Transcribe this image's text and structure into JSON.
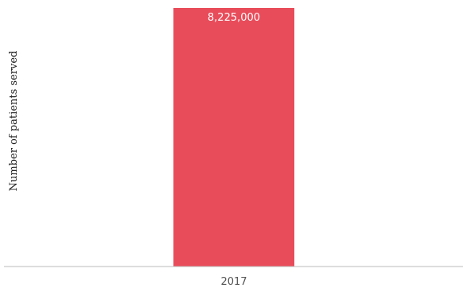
{
  "chart_data": {
    "type": "bar",
    "categories": [
      "2017"
    ],
    "values": [
      8225000
    ],
    "value_labels": [
      "8,225,000"
    ],
    "title": "",
    "xlabel": "",
    "ylabel": "Number of patients served",
    "ylim": [
      0,
      8225000
    ],
    "grid": false,
    "legend": "none",
    "bar_color": "#e84c5a",
    "axis_color": "#bbbbbb"
  }
}
